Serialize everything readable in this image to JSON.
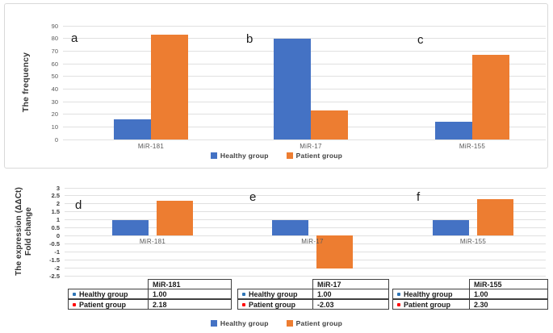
{
  "colors": {
    "healthy": "#4472C4",
    "patient": "#ED7D31",
    "grid": "#e0e0e0",
    "healthy_bullet": "#2e75b6",
    "patient_bullet": "#ff0000"
  },
  "legend": {
    "healthy_label": "Healthy group",
    "patient_label": "Patient group"
  },
  "chart_data": [
    {
      "id": "frequency-chart",
      "type": "bar",
      "panel_letters": [
        "a",
        "b",
        "c"
      ],
      "categories": [
        "MiR-181",
        "MiR-17",
        "MiR-155"
      ],
      "series": [
        {
          "name": "Healthy group",
          "color": "#4472C4",
          "values": [
            16,
            80,
            14
          ]
        },
        {
          "name": "Patient group",
          "color": "#ED7D31",
          "values": [
            83,
            23,
            67
          ]
        }
      ],
      "ylabel": "The frequency",
      "ylim": [
        0,
        90
      ],
      "ytick_step": 10,
      "grid": true,
      "legend_position": "bottom"
    },
    {
      "id": "expression-chart",
      "type": "bar",
      "panel_letters": [
        "d",
        "e",
        "f"
      ],
      "categories": [
        "MiR-181",
        "MiR-17",
        "MiR-155"
      ],
      "series": [
        {
          "name": "Healthy group",
          "color": "#4472C4",
          "values": [
            1.0,
            1.0,
            1.0
          ]
        },
        {
          "name": "Patient group",
          "color": "#ED7D31",
          "values": [
            2.18,
            -2.03,
            2.3
          ]
        }
      ],
      "ylabel": "The expression (ΔΔCt) Fold change",
      "ylabel_lines": [
        "The expression (ΔΔCt)",
        "Fold change"
      ],
      "ylim": [
        -2.5,
        3
      ],
      "ytick_step": 0.5,
      "grid": true,
      "legend_position": "bottom",
      "data_table": {
        "columns": [
          "MiR-181",
          "MiR-17",
          "MiR-155"
        ],
        "row_labels": [
          "Healthy group",
          "Patient group"
        ],
        "values": [
          [
            "1.00",
            "1.00",
            "1.00"
          ],
          [
            "2.18",
            "-2.03",
            "2.30"
          ]
        ]
      }
    }
  ]
}
